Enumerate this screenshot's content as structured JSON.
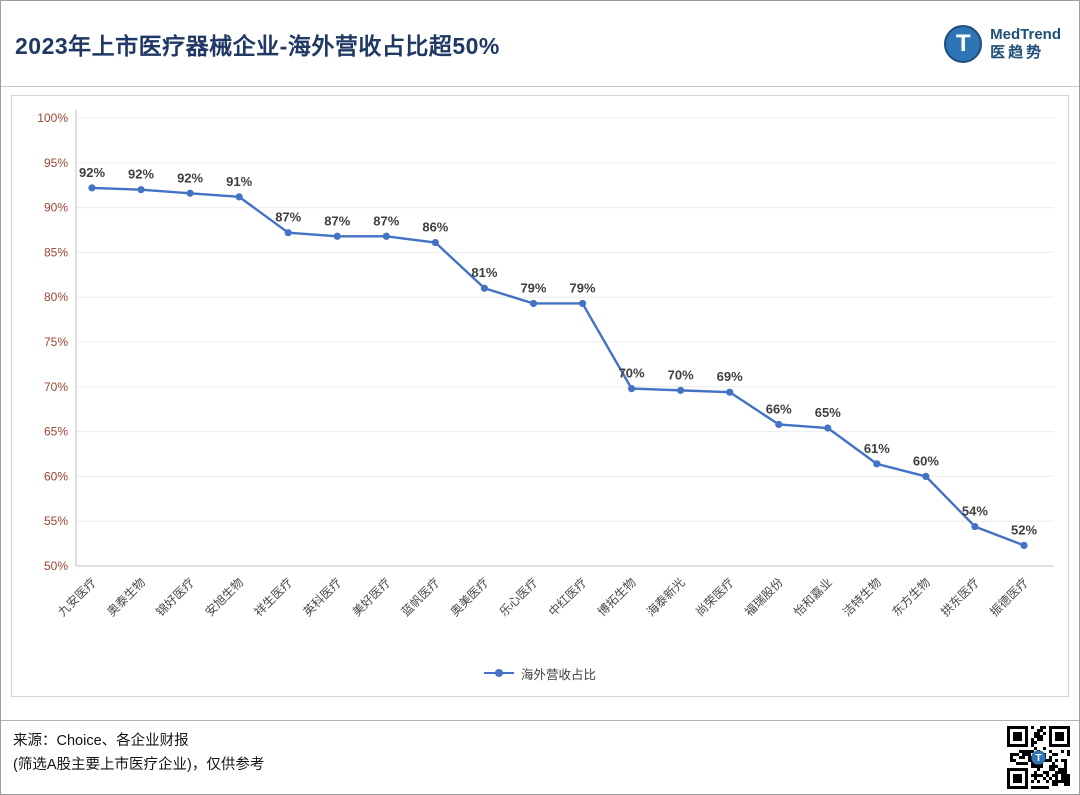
{
  "header": {
    "title": "2023年上市医疗器械企业-海外营收占比超50%",
    "logo": {
      "letter": "T",
      "brand": "MedTrend",
      "brand_cn": "医趋势"
    }
  },
  "chart_data": {
    "type": "line",
    "title": "2023年上市医疗器械企业-海外营收占比超50%",
    "categories": [
      "九安医疗",
      "奥泰生物",
      "锦好医疗",
      "安旭生物",
      "祥生医疗",
      "英科医疗",
      "美好医疗",
      "蓝帆医疗",
      "奥美医疗",
      "乐心医疗",
      "中红医疗",
      "博拓生物",
      "海泰新光",
      "尚荣医疗",
      "福瑞股份",
      "怡和嘉业",
      "洁特生物",
      "东方生物",
      "拱东医疗",
      "振德医疗"
    ],
    "series": [
      {
        "name": "海外营收占比",
        "values": [
          92.2,
          92.0,
          91.6,
          91.2,
          87.2,
          86.8,
          86.8,
          86.1,
          81.0,
          79.3,
          79.3,
          69.8,
          69.6,
          69.4,
          65.8,
          65.4,
          61.4,
          60.0,
          54.4,
          52.3
        ]
      }
    ],
    "data_labels": [
      "92%",
      "92%",
      "92%",
      "91%",
      "87%",
      "87%",
      "87%",
      "86%",
      "81%",
      "79%",
      "79%",
      "70%",
      "70%",
      "69%",
      "66%",
      "65%",
      "61%",
      "60%",
      "54%",
      "52%"
    ],
    "xlabel": "",
    "ylabel": "",
    "ylim": [
      50,
      100
    ],
    "ytick_step": 5,
    "yticks": [
      "100%",
      "95%",
      "90%",
      "85%",
      "80%",
      "75%",
      "70%",
      "65%",
      "60%",
      "55%",
      "50%"
    ],
    "grid": true,
    "legend_position": "bottom",
    "line_color": "#4472c4"
  },
  "footer": {
    "line1": "来源：Choice、各企业财报",
    "line2": "(筛选A股主要上市医疗企业)，仅供参考"
  },
  "colors": {
    "title": "#1f3864",
    "accent": "#2e75b6",
    "line": "#4472c4",
    "ytick": "#9a4632",
    "xtick": "#4a4a4a",
    "data_label": "#3f3f3f",
    "grid": "#ececec",
    "axis": "#bfbfbf"
  }
}
